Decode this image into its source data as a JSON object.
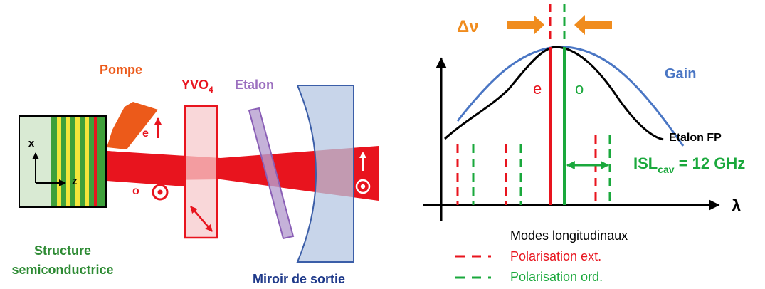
{
  "left": {
    "pump_label": "Pompe",
    "crystal_label_main": "YVO",
    "crystal_label_sub": "4",
    "etalon_label": "Etalon",
    "axis_x": "x",
    "axis_z": "z",
    "beam_e": "e",
    "beam_o": "o",
    "structure_line1": "Structure",
    "structure_line2": "semiconductrice",
    "mirror_label": "Miroir de sortie"
  },
  "right": {
    "delta_nu": "Δν",
    "gain_label": "Gain",
    "mode_e": "e",
    "mode_o": "o",
    "etalon_fp": "Etalon FP",
    "isl_main": "ISL",
    "isl_sub": "cav",
    "isl_value": " = 12 GHz",
    "lambda": "λ",
    "legend_title": "Modes longitudinaux",
    "legend_ext": "Polarisation ext.",
    "legend_ord": "Polarisation ord."
  },
  "colors": {
    "red": "#e8141e",
    "green": "#1aa83c",
    "orange": "#f08c1e",
    "pump": "#ec5a1a",
    "purple": "#9b6fbf",
    "blue_gain": "#4a76c4",
    "navy": "#1f3a8a",
    "struct_green": "#2e8b34"
  }
}
